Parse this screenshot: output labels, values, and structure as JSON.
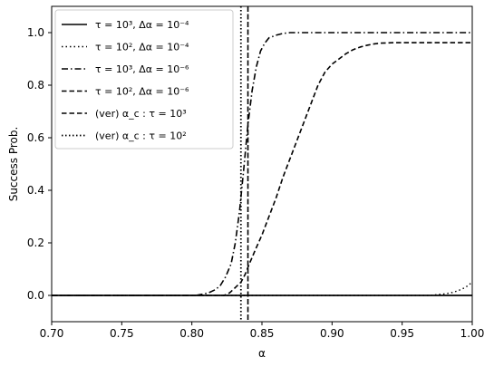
{
  "chart_data": {
    "type": "line",
    "title": "",
    "xlabel": "α",
    "ylabel": "Success Prob.",
    "xlim": [
      0.7,
      1.0
    ],
    "ylim": [
      -0.1,
      1.1
    ],
    "x_ticks": [
      "0.70",
      "0.75",
      "0.80",
      "0.85",
      "0.90",
      "0.95",
      "1.00"
    ],
    "y_ticks": [
      "0.0",
      "0.2",
      "0.4",
      "0.6",
      "0.8",
      "1.0"
    ],
    "grid": false,
    "legend_position": "top-left",
    "series": [
      {
        "name": "τ = 10³, Δα = 10⁻⁴",
        "style": "solid",
        "x": [
          0.7,
          1.0
        ],
        "y": [
          0.0,
          0.0
        ]
      },
      {
        "name": "τ = 10², Δα = 10⁻⁴",
        "style": "dotted",
        "x": [
          0.7,
          0.97,
          0.975,
          0.98,
          0.985,
          0.99,
          0.995,
          1.0
        ],
        "y": [
          0.0,
          0.0,
          0.003,
          0.006,
          0.01,
          0.018,
          0.03,
          0.05
        ]
      },
      {
        "name": "τ = 10³, Δα = 10⁻⁶",
        "style": "dashdot",
        "x": [
          0.7,
          0.803,
          0.808,
          0.812,
          0.816,
          0.82,
          0.824,
          0.828,
          0.831,
          0.834,
          0.837,
          0.84,
          0.843,
          0.846,
          0.849,
          0.852,
          0.855,
          0.86,
          0.865,
          0.87,
          1.0
        ],
        "y": [
          0.0,
          0.0,
          0.005,
          0.01,
          0.02,
          0.035,
          0.07,
          0.12,
          0.2,
          0.32,
          0.48,
          0.65,
          0.78,
          0.87,
          0.93,
          0.96,
          0.98,
          0.99,
          0.997,
          1.0,
          1.0
        ]
      },
      {
        "name": "τ = 10², Δα = 10⁻⁶",
        "style": "dashed",
        "x": [
          0.7,
          0.823,
          0.827,
          0.831,
          0.835,
          0.838,
          0.841,
          0.845,
          0.85,
          0.855,
          0.86,
          0.865,
          0.87,
          0.875,
          0.88,
          0.885,
          0.89,
          0.895,
          0.9,
          0.905,
          0.91,
          0.915,
          0.92,
          0.925,
          0.93,
          0.935,
          0.94,
          0.945,
          0.95,
          1.0
        ],
        "y": [
          0.0,
          0.0,
          0.01,
          0.03,
          0.05,
          0.08,
          0.12,
          0.17,
          0.23,
          0.3,
          0.37,
          0.45,
          0.52,
          0.59,
          0.66,
          0.73,
          0.8,
          0.85,
          0.88,
          0.9,
          0.92,
          0.935,
          0.945,
          0.952,
          0.957,
          0.96,
          0.961,
          0.962,
          0.962,
          0.962
        ]
      }
    ],
    "vertical_lines": [
      {
        "name": "(ver) α_c : τ = 10³",
        "style": "dashed-thick",
        "x": 0.84
      },
      {
        "name": "(ver) α_c : τ = 10²",
        "style": "dotted-thick",
        "x": 0.835
      }
    ],
    "horizontal_lines": [
      {
        "y": 0.0,
        "style": "solid"
      }
    ]
  }
}
